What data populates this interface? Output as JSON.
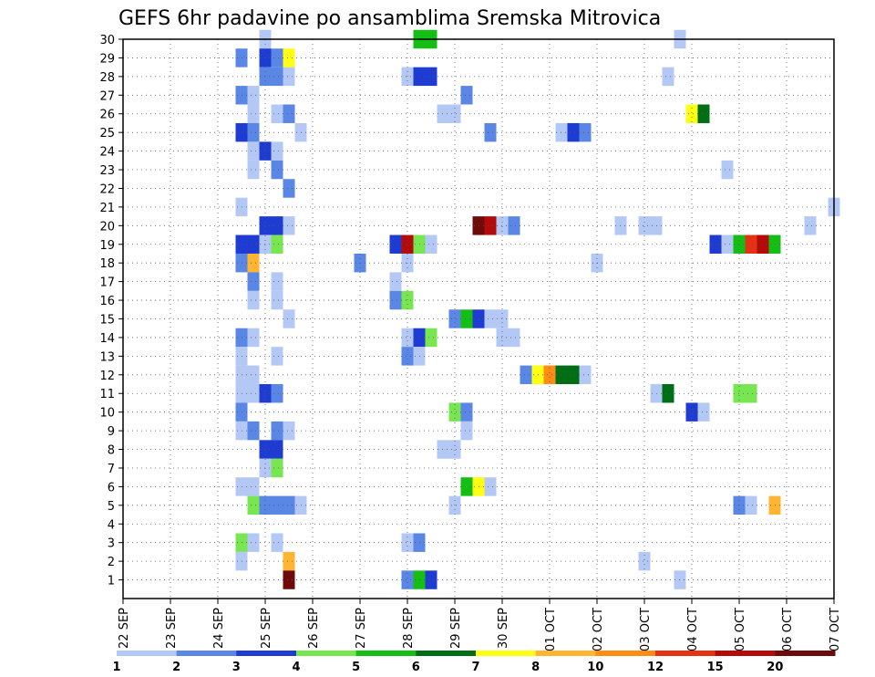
{
  "chart_data": {
    "type": "heatmap",
    "title": "GEFS 6hr padavine po ansamblima Sremska Mitrovica",
    "xlabel": "",
    "ylabel": "",
    "x_tick_labels": [
      "22 SEP",
      "23 SEP",
      "24 SEP",
      "25 SEP",
      "26 SEP",
      "27 SEP",
      "28 SEP",
      "29 SEP",
      "30 SEP",
      "01 OCT",
      "02 OCT",
      "03 OCT",
      "04 OCT",
      "05 OCT",
      "06 OCT",
      "07 OCT"
    ],
    "x_unit": "6-hour steps from 22 SEP 00Z",
    "xlim": [
      0,
      60
    ],
    "y_tick_labels": [
      "1",
      "2",
      "3",
      "4",
      "5",
      "6",
      "7",
      "8",
      "9",
      "10",
      "11",
      "12",
      "13",
      "14",
      "15",
      "16",
      "17",
      "18",
      "19",
      "20",
      "21",
      "22",
      "23",
      "24",
      "25",
      "26",
      "27",
      "28",
      "29",
      "30"
    ],
    "ylim": [
      0,
      30
    ],
    "grid": true,
    "colorbar": {
      "labels": [
        "1",
        "2",
        "3",
        "4",
        "5",
        "6",
        "7",
        "8",
        "10",
        "12",
        "15",
        "20"
      ],
      "colors": [
        "#b4c8f5",
        "#5a87e6",
        "#1e3cd2",
        "#78e650",
        "#14be14",
        "#006e14",
        "#ffff14",
        "#ffb432",
        "#ff8c14",
        "#e63214",
        "#b40a0a",
        "#6e0a0a"
      ]
    },
    "cells": [
      {
        "m": 30,
        "t": 12,
        "v": 1
      },
      {
        "m": 30,
        "t": 25,
        "v": 5
      },
      {
        "m": 30,
        "t": 26,
        "v": 5
      },
      {
        "m": 30,
        "t": 47,
        "v": 1
      },
      {
        "m": 29,
        "t": 10,
        "v": 2
      },
      {
        "m": 29,
        "t": 12,
        "v": 3
      },
      {
        "m": 29,
        "t": 13,
        "v": 2
      },
      {
        "m": 29,
        "t": 14,
        "v": 7
      },
      {
        "m": 28,
        "t": 12,
        "v": 2
      },
      {
        "m": 28,
        "t": 13,
        "v": 2
      },
      {
        "m": 28,
        "t": 14,
        "v": 1
      },
      {
        "m": 28,
        "t": 24,
        "v": 1
      },
      {
        "m": 28,
        "t": 25,
        "v": 3
      },
      {
        "m": 28,
        "t": 26,
        "v": 3
      },
      {
        "m": 28,
        "t": 46,
        "v": 1
      },
      {
        "m": 27,
        "t": 10,
        "v": 2
      },
      {
        "m": 27,
        "t": 11,
        "v": 1
      },
      {
        "m": 27,
        "t": 29,
        "v": 2
      },
      {
        "m": 26,
        "t": 11,
        "v": 1
      },
      {
        "m": 26,
        "t": 13,
        "v": 1
      },
      {
        "m": 26,
        "t": 14,
        "v": 2
      },
      {
        "m": 26,
        "t": 27,
        "v": 1
      },
      {
        "m": 26,
        "t": 28,
        "v": 1
      },
      {
        "m": 26,
        "t": 48,
        "v": 7
      },
      {
        "m": 26,
        "t": 49,
        "v": 6
      },
      {
        "m": 25,
        "t": 10,
        "v": 3
      },
      {
        "m": 25,
        "t": 11,
        "v": 2
      },
      {
        "m": 25,
        "t": 15,
        "v": 1
      },
      {
        "m": 25,
        "t": 31,
        "v": 2
      },
      {
        "m": 25,
        "t": 37,
        "v": 1
      },
      {
        "m": 25,
        "t": 38,
        "v": 3
      },
      {
        "m": 25,
        "t": 39,
        "v": 2
      },
      {
        "m": 24,
        "t": 11,
        "v": 1
      },
      {
        "m": 24,
        "t": 12,
        "v": 3
      },
      {
        "m": 24,
        "t": 13,
        "v": 1
      },
      {
        "m": 23,
        "t": 11,
        "v": 1
      },
      {
        "m": 23,
        "t": 13,
        "v": 2
      },
      {
        "m": 23,
        "t": 51,
        "v": 1
      },
      {
        "m": 22,
        "t": 14,
        "v": 2
      },
      {
        "m": 21,
        "t": 10,
        "v": 1
      },
      {
        "m": 21,
        "t": 60,
        "v": 1
      },
      {
        "m": 20,
        "t": 12,
        "v": 3
      },
      {
        "m": 20,
        "t": 13,
        "v": 3
      },
      {
        "m": 20,
        "t": 14,
        "v": 1
      },
      {
        "m": 20,
        "t": 30,
        "v": 20
      },
      {
        "m": 20,
        "t": 31,
        "v": 15
      },
      {
        "m": 20,
        "t": 32,
        "v": 1
      },
      {
        "m": 20,
        "t": 33,
        "v": 2
      },
      {
        "m": 20,
        "t": 42,
        "v": 1
      },
      {
        "m": 20,
        "t": 44,
        "v": 1
      },
      {
        "m": 20,
        "t": 45,
        "v": 1
      },
      {
        "m": 20,
        "t": 58,
        "v": 1
      },
      {
        "m": 19,
        "t": 10,
        "v": 3
      },
      {
        "m": 19,
        "t": 11,
        "v": 3
      },
      {
        "m": 19,
        "t": 12,
        "v": 1
      },
      {
        "m": 19,
        "t": 13,
        "v": 4
      },
      {
        "m": 19,
        "t": 23,
        "v": 3
      },
      {
        "m": 19,
        "t": 24,
        "v": 15
      },
      {
        "m": 19,
        "t": 25,
        "v": 4
      },
      {
        "m": 19,
        "t": 26,
        "v": 1
      },
      {
        "m": 19,
        "t": 50,
        "v": 3
      },
      {
        "m": 19,
        "t": 51,
        "v": 1
      },
      {
        "m": 19,
        "t": 52,
        "v": 5
      },
      {
        "m": 19,
        "t": 53,
        "v": 12
      },
      {
        "m": 19,
        "t": 54,
        "v": 15
      },
      {
        "m": 19,
        "t": 55,
        "v": 5
      },
      {
        "m": 18,
        "t": 10,
        "v": 2
      },
      {
        "m": 18,
        "t": 11,
        "v": 8
      },
      {
        "m": 18,
        "t": 20,
        "v": 2
      },
      {
        "m": 18,
        "t": 24,
        "v": 1
      },
      {
        "m": 18,
        "t": 40,
        "v": 1
      },
      {
        "m": 17,
        "t": 11,
        "v": 2
      },
      {
        "m": 17,
        "t": 13,
        "v": 1
      },
      {
        "m": 17,
        "t": 23,
        "v": 1
      },
      {
        "m": 16,
        "t": 11,
        "v": 1
      },
      {
        "m": 16,
        "t": 13,
        "v": 1
      },
      {
        "m": 16,
        "t": 23,
        "v": 2
      },
      {
        "m": 16,
        "t": 24,
        "v": 4
      },
      {
        "m": 15,
        "t": 14,
        "v": 1
      },
      {
        "m": 15,
        "t": 28,
        "v": 2
      },
      {
        "m": 15,
        "t": 29,
        "v": 5
      },
      {
        "m": 15,
        "t": 30,
        "v": 3
      },
      {
        "m": 15,
        "t": 31,
        "v": 1
      },
      {
        "m": 15,
        "t": 32,
        "v": 1
      },
      {
        "m": 14,
        "t": 10,
        "v": 2
      },
      {
        "m": 14,
        "t": 11,
        "v": 1
      },
      {
        "m": 14,
        "t": 24,
        "v": 1
      },
      {
        "m": 14,
        "t": 25,
        "v": 3
      },
      {
        "m": 14,
        "t": 26,
        "v": 4
      },
      {
        "m": 14,
        "t": 32,
        "v": 1
      },
      {
        "m": 14,
        "t": 33,
        "v": 1
      },
      {
        "m": 13,
        "t": 10,
        "v": 1
      },
      {
        "m": 13,
        "t": 13,
        "v": 1
      },
      {
        "m": 13,
        "t": 24,
        "v": 2
      },
      {
        "m": 13,
        "t": 25,
        "v": 1
      },
      {
        "m": 12,
        "t": 10,
        "v": 1
      },
      {
        "m": 12,
        "t": 11,
        "v": 1
      },
      {
        "m": 12,
        "t": 34,
        "v": 2
      },
      {
        "m": 12,
        "t": 35,
        "v": 7
      },
      {
        "m": 12,
        "t": 36,
        "v": 10
      },
      {
        "m": 12,
        "t": 37,
        "v": 6
      },
      {
        "m": 12,
        "t": 38,
        "v": 6
      },
      {
        "m": 12,
        "t": 39,
        "v": 1
      },
      {
        "m": 11,
        "t": 10,
        "v": 1
      },
      {
        "m": 11,
        "t": 11,
        "v": 1
      },
      {
        "m": 11,
        "t": 12,
        "v": 3
      },
      {
        "m": 11,
        "t": 13,
        "v": 2
      },
      {
        "m": 11,
        "t": 45,
        "v": 1
      },
      {
        "m": 11,
        "t": 46,
        "v": 6
      },
      {
        "m": 11,
        "t": 52,
        "v": 4
      },
      {
        "m": 11,
        "t": 53,
        "v": 4
      },
      {
        "m": 10,
        "t": 10,
        "v": 2
      },
      {
        "m": 10,
        "t": 28,
        "v": 4
      },
      {
        "m": 10,
        "t": 29,
        "v": 2
      },
      {
        "m": 10,
        "t": 48,
        "v": 3
      },
      {
        "m": 10,
        "t": 49,
        "v": 1
      },
      {
        "m": 9,
        "t": 10,
        "v": 1
      },
      {
        "m": 9,
        "t": 11,
        "v": 2
      },
      {
        "m": 9,
        "t": 13,
        "v": 2
      },
      {
        "m": 9,
        "t": 14,
        "v": 1
      },
      {
        "m": 9,
        "t": 29,
        "v": 1
      },
      {
        "m": 8,
        "t": 12,
        "v": 3
      },
      {
        "m": 8,
        "t": 13,
        "v": 3
      },
      {
        "m": 8,
        "t": 27,
        "v": 1
      },
      {
        "m": 8,
        "t": 28,
        "v": 1
      },
      {
        "m": 7,
        "t": 12,
        "v": 1
      },
      {
        "m": 7,
        "t": 13,
        "v": 4
      },
      {
        "m": 6,
        "t": 10,
        "v": 1
      },
      {
        "m": 6,
        "t": 11,
        "v": 1
      },
      {
        "m": 6,
        "t": 29,
        "v": 5
      },
      {
        "m": 6,
        "t": 30,
        "v": 7
      },
      {
        "m": 6,
        "t": 31,
        "v": 1
      },
      {
        "m": 5,
        "t": 11,
        "v": 4
      },
      {
        "m": 5,
        "t": 12,
        "v": 2
      },
      {
        "m": 5,
        "t": 13,
        "v": 2
      },
      {
        "m": 5,
        "t": 14,
        "v": 2
      },
      {
        "m": 5,
        "t": 15,
        "v": 1
      },
      {
        "m": 5,
        "t": 28,
        "v": 1
      },
      {
        "m": 5,
        "t": 52,
        "v": 2
      },
      {
        "m": 5,
        "t": 53,
        "v": 1
      },
      {
        "m": 5,
        "t": 55,
        "v": 8
      },
      {
        "m": 3,
        "t": 10,
        "v": 4
      },
      {
        "m": 3,
        "t": 11,
        "v": 1
      },
      {
        "m": 3,
        "t": 13,
        "v": 1
      },
      {
        "m": 3,
        "t": 24,
        "v": 1
      },
      {
        "m": 3,
        "t": 25,
        "v": 2
      },
      {
        "m": 2,
        "t": 10,
        "v": 1
      },
      {
        "m": 2,
        "t": 14,
        "v": 8
      },
      {
        "m": 2,
        "t": 44,
        "v": 1
      },
      {
        "m": 1,
        "t": 14,
        "v": 20
      },
      {
        "m": 1,
        "t": 24,
        "v": 2
      },
      {
        "m": 1,
        "t": 25,
        "v": 5
      },
      {
        "m": 1,
        "t": 26,
        "v": 3
      },
      {
        "m": 1,
        "t": 47,
        "v": 1
      }
    ]
  }
}
